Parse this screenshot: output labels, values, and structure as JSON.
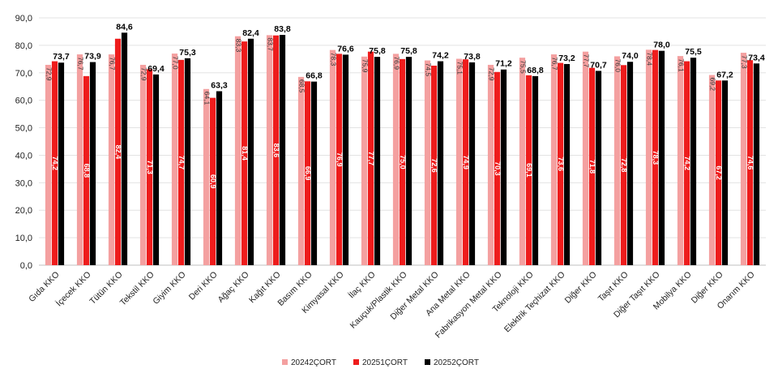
{
  "chart_data": {
    "type": "bar",
    "categories": [
      "Gıda KKO",
      "İçecek KKO",
      "Tütün KKO",
      "Tekstil KKO",
      "Giyim KKO",
      "Deri KKO",
      "Ağaç KKO",
      "Kağıt KKO",
      "Basım KKO",
      "Kimyasal KKO",
      "İlaç KKO",
      "Kauçuk/Plastik KKO",
      "Diğer Metal KKO",
      "Ana Metal KKO",
      "Fabrikasyon Metal KKO",
      "Teknoloji KKO",
      "Elektrik Teçhizat KKO",
      "Diğer KKO",
      "Taşıt KKO",
      "Diğer Taşıt KKO",
      "Mobilya KKO",
      "Diğer KKO",
      "Onarım KKO"
    ],
    "series": [
      {
        "name": "20242ÇORT",
        "color": "#f4a0a0",
        "label_style": "rotated-top",
        "values": [
          72.9,
          76.7,
          76.7,
          72.9,
          77.0,
          64.1,
          83.3,
          83.7,
          68.5,
          78.3,
          75.9,
          76.9,
          74.5,
          75.1,
          72.9,
          75.5,
          76.7,
          77.7,
          76.0,
          78.4,
          76.1,
          69.2,
          77.3
        ]
      },
      {
        "name": "20251ÇORT",
        "color": "#ee1c1c",
        "label_style": "rotated-inside",
        "values": [
          74.2,
          68.8,
          82.4,
          71.3,
          74.7,
          60.9,
          81.4,
          83.6,
          66.9,
          76.9,
          77.7,
          75.0,
          72.6,
          74.9,
          70.3,
          69.1,
          73.6,
          71.8,
          72.8,
          78.3,
          74.2,
          67.2,
          74.6
        ]
      },
      {
        "name": "20252ÇORT",
        "color": "#000000",
        "label_style": "top",
        "values": [
          73.7,
          73.9,
          84.6,
          69.4,
          75.3,
          63.3,
          82.4,
          83.8,
          66.8,
          76.6,
          75.8,
          75.8,
          74.2,
          73.8,
          71.2,
          68.8,
          73.2,
          70.7,
          74.0,
          78.0,
          75.5,
          67.2,
          73.4
        ]
      }
    ],
    "ylim": [
      0,
      90
    ],
    "yticks": [
      "0,0",
      "10,0",
      "20,0",
      "30,0",
      "40,0",
      "50,0",
      "60,0",
      "70,0",
      "80,0",
      "90,0"
    ],
    "ytick_values": [
      0,
      10,
      20,
      30,
      40,
      50,
      60,
      70,
      80,
      90
    ],
    "grid": true,
    "legend": "bottom-center",
    "decimal_separator": ","
  }
}
